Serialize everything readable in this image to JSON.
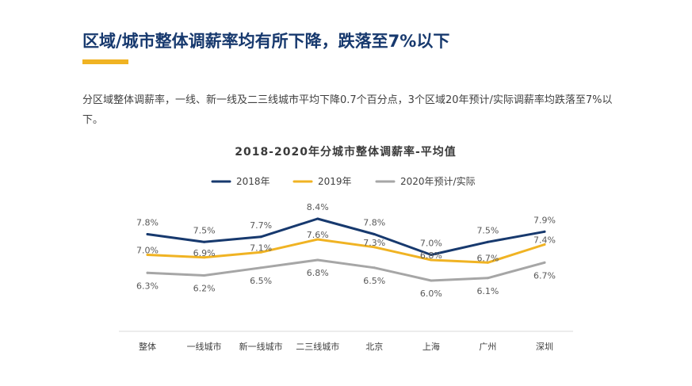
{
  "header": {
    "title": "区域/城市整体调薪率均有所下降，跌落至7%以下",
    "summary": "分区域整体调薪率，一线、新一线及二三线城市平均下降0.7个百分点，3个区域20年预计/实际调薪率均跌落至7%以下。"
  },
  "chart_data": {
    "type": "line",
    "title": "2018-2020年分城市整体调薪率-平均值",
    "categories": [
      "整体",
      "一线城市",
      "新一线城市",
      "二三线城市",
      "北京",
      "上海",
      "广州",
      "深圳"
    ],
    "series": [
      {
        "name": "2018年",
        "color": "#17396e",
        "values": [
          7.8,
          7.5,
          7.7,
          8.4,
          7.8,
          7.0,
          7.5,
          7.9
        ],
        "labels": [
          "7.8%",
          "7.5%",
          "7.7%",
          "8.4%",
          "7.8%",
          "7.0%",
          "7.5%",
          "7.9%"
        ]
      },
      {
        "name": "2019年",
        "color": "#f0b323",
        "values": [
          7.0,
          6.9,
          7.1,
          7.6,
          7.3,
          6.8,
          6.7,
          7.4
        ],
        "labels": [
          "7.0%",
          "6.9%",
          "7.1%",
          "7.6%",
          "7.3%",
          "6.8%",
          "6.7%",
          "7.4%"
        ]
      },
      {
        "name": "2020年预计/实际",
        "color": "#a6a6a6",
        "values": [
          6.3,
          6.2,
          6.5,
          6.8,
          6.5,
          6.0,
          6.1,
          6.7
        ],
        "labels": [
          "6.3%",
          "6.2%",
          "6.5%",
          "6.8%",
          "6.5%",
          "6.0%",
          "6.1%",
          "6.7%"
        ]
      }
    ],
    "legend_position": "top-center",
    "grid": false
  }
}
